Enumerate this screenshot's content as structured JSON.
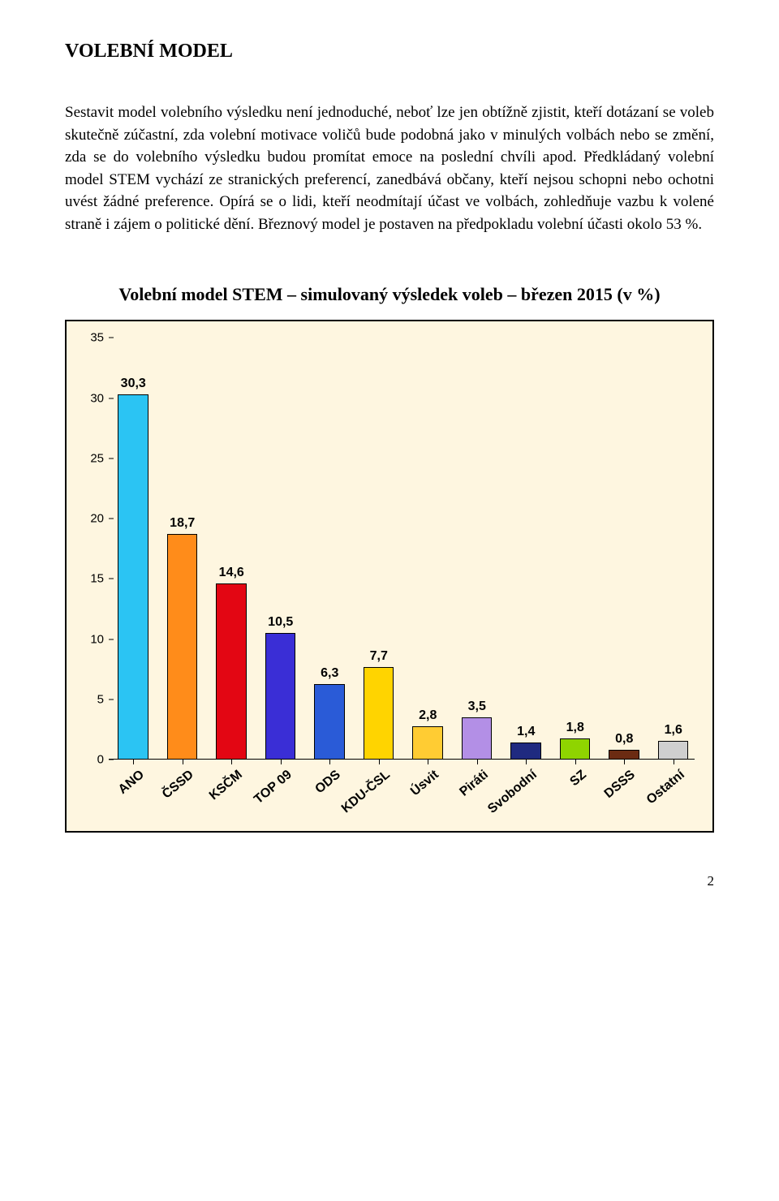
{
  "heading": "VOLEBNÍ MODEL",
  "paragraph": "Sestavit model volebního výsledku není jednoduché, neboť lze jen obtížně zjistit, kteří dotázaní se voleb skutečně zúčastní, zda volební motivace voličů bude podobná jako v minulých volbách nebo se změní, zda se do volebního výsledku budou promítat emoce na poslední chvíli apod. Předkládaný volební model STEM vychází ze stranických preferencí, zanedbává občany, kteří nejsou schopni nebo ochotni uvést žádné preference. Opírá se o lidi, kteří neodmítají účast ve volbách, zohledňuje vazbu k volené straně i zájem o politické dění. Březnový model je postaven na předpokladu volební účasti okolo 53 %.",
  "chart": {
    "type": "bar",
    "title": "Volební model STEM – simulovaný výsledek voleb – březen 2015 (v %)",
    "background_color": "#fef6e0",
    "border_color": "#000000",
    "ylim_min": 0,
    "ylim_max": 35,
    "ytick_step": 5,
    "yticks": [
      0,
      5,
      10,
      15,
      20,
      25,
      30,
      35
    ],
    "label_fontsize": 15,
    "barlabel_fontsize": 16,
    "barlabel_fontweight": "bold",
    "xlabel_fontsize": 16,
    "xlabel_fontweight": "bold",
    "xlabel_rotation_deg": -40,
    "bar_width_ratio": 0.62,
    "categories": [
      "ANO",
      "ČSSD",
      "KSČM",
      "TOP 09",
      "ODS",
      "KDU-ČSL",
      "Úsvit",
      "Piráti",
      "Svobodní",
      "SZ",
      "DSSS",
      "Ostatní"
    ],
    "values_display": [
      "30,3",
      "18,7",
      "14,6",
      "10,5",
      "6,3",
      "7,7",
      "2,8",
      "3,5",
      "1,4",
      "1,8",
      "0,8",
      "1,6"
    ],
    "values": [
      30.3,
      18.7,
      14.6,
      10.5,
      6.3,
      7.7,
      2.8,
      3.5,
      1.4,
      1.8,
      0.8,
      1.6
    ],
    "bar_colors": [
      "#2bc4f3",
      "#ff8c1a",
      "#e30613",
      "#3a2ed6",
      "#2a5bd7",
      "#ffd400",
      "#ffcc33",
      "#b38fe6",
      "#1f2a80",
      "#8fd400",
      "#6b2b12",
      "#cfcfcf"
    ],
    "bar_border_color": "#000000"
  },
  "page_number": "2"
}
